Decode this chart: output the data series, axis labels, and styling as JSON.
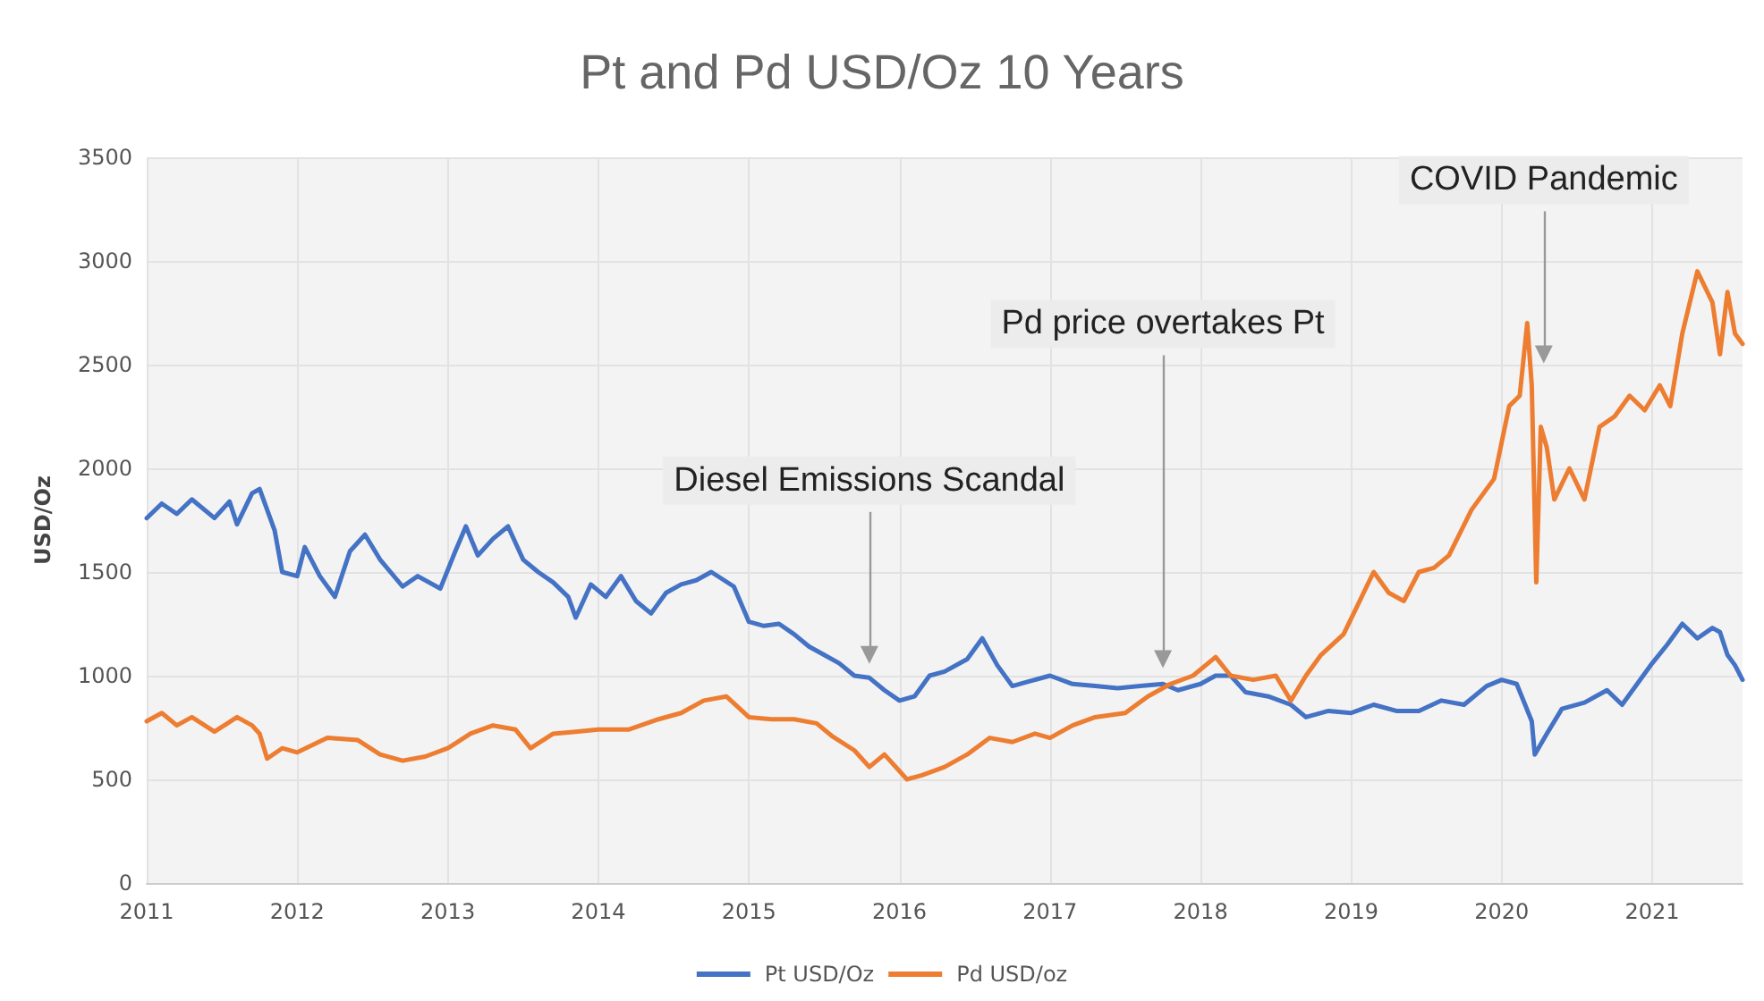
{
  "chart_data": {
    "type": "line",
    "title": "Pt and Pd USD/Oz 10 Years",
    "ylabel": "USD/Oz",
    "xlim": [
      2011,
      2021.6
    ],
    "xticks": [
      2011,
      2012,
      2013,
      2014,
      2015,
      2016,
      2017,
      2018,
      2019,
      2020,
      2021
    ],
    "ylim": [
      0,
      3500
    ],
    "yticks": [
      0,
      500,
      1000,
      1500,
      2000,
      2500,
      3000,
      3500
    ],
    "grid": true,
    "legend": "bottom",
    "marker": "none",
    "line_style": "solid",
    "annotations": [
      {
        "text": "Diesel Emissions Scandal",
        "x": 2015.8,
        "y": 1100
      },
      {
        "text": "Pd price overtakes Pt",
        "x": 2017.75,
        "y": 1080
      },
      {
        "text": "COVID Pandemic",
        "x": 2020.28,
        "y": 2550
      }
    ],
    "series": [
      {
        "name": "Pt USD/Oz",
        "color": "#4472c4",
        "x": [
          2011.0,
          2011.1,
          2011.2,
          2011.3,
          2011.45,
          2011.55,
          2011.6,
          2011.7,
          2011.75,
          2011.85,
          2011.9,
          2012.0,
          2012.05,
          2012.15,
          2012.25,
          2012.35,
          2012.45,
          2012.55,
          2012.7,
          2012.8,
          2012.95,
          2013.05,
          2013.12,
          2013.2,
          2013.3,
          2013.4,
          2013.5,
          2013.6,
          2013.7,
          2013.8,
          2013.85,
          2013.95,
          2014.05,
          2014.15,
          2014.25,
          2014.35,
          2014.45,
          2014.55,
          2014.65,
          2014.75,
          2014.9,
          2015.0,
          2015.1,
          2015.2,
          2015.3,
          2015.4,
          2015.5,
          2015.6,
          2015.7,
          2015.8,
          2015.9,
          2016.0,
          2016.1,
          2016.2,
          2016.3,
          2016.45,
          2016.55,
          2016.65,
          2016.75,
          2016.85,
          2017.0,
          2017.15,
          2017.3,
          2017.45,
          2017.6,
          2017.75,
          2017.85,
          2018.0,
          2018.1,
          2018.2,
          2018.3,
          2018.45,
          2018.6,
          2018.7,
          2018.85,
          2019.0,
          2019.15,
          2019.3,
          2019.45,
          2019.6,
          2019.75,
          2019.9,
          2020.0,
          2020.1,
          2020.2,
          2020.22,
          2020.3,
          2020.4,
          2020.55,
          2020.7,
          2020.8,
          2020.9,
          2021.0,
          2021.1,
          2021.2,
          2021.3,
          2021.4,
          2021.45,
          2021.5,
          2021.55,
          2021.6
        ],
        "values": [
          1760,
          1830,
          1780,
          1850,
          1760,
          1840,
          1730,
          1880,
          1900,
          1700,
          1500,
          1480,
          1620,
          1480,
          1380,
          1600,
          1680,
          1560,
          1430,
          1480,
          1420,
          1600,
          1720,
          1580,
          1660,
          1720,
          1560,
          1500,
          1450,
          1380,
          1280,
          1440,
          1380,
          1480,
          1360,
          1300,
          1400,
          1440,
          1460,
          1500,
          1430,
          1260,
          1240,
          1250,
          1200,
          1140,
          1100,
          1060,
          1000,
          990,
          930,
          880,
          900,
          1000,
          1020,
          1080,
          1180,
          1050,
          950,
          970,
          1000,
          960,
          950,
          940,
          950,
          960,
          930,
          960,
          1000,
          1000,
          920,
          900,
          860,
          800,
          830,
          820,
          860,
          830,
          830,
          880,
          860,
          950,
          980,
          960,
          780,
          620,
          720,
          840,
          870,
          930,
          860,
          960,
          1060,
          1150,
          1250,
          1180,
          1230,
          1210,
          1100,
          1050,
          980
        ]
      },
      {
        "name": "Pd USD/oz",
        "color": "#ed7d31",
        "x": [
          2011.0,
          2011.1,
          2011.2,
          2011.3,
          2011.45,
          2011.6,
          2011.7,
          2011.75,
          2011.8,
          2011.9,
          2012.0,
          2012.2,
          2012.4,
          2012.55,
          2012.7,
          2012.85,
          2013.0,
          2013.15,
          2013.3,
          2013.45,
          2013.55,
          2013.7,
          2013.85,
          2014.0,
          2014.2,
          2014.4,
          2014.55,
          2014.7,
          2014.85,
          2015.0,
          2015.15,
          2015.3,
          2015.45,
          2015.55,
          2015.7,
          2015.8,
          2015.9,
          2016.05,
          2016.15,
          2016.3,
          2016.45,
          2016.6,
          2016.75,
          2016.9,
          2017.0,
          2017.15,
          2017.3,
          2017.5,
          2017.65,
          2017.8,
          2017.95,
          2018.05,
          2018.1,
          2018.2,
          2018.35,
          2018.5,
          2018.6,
          2018.7,
          2018.8,
          2018.95,
          2019.05,
          2019.15,
          2019.25,
          2019.35,
          2019.45,
          2019.55,
          2019.65,
          2019.8,
          2019.95,
          2020.05,
          2020.12,
          2020.17,
          2020.2,
          2020.23,
          2020.26,
          2020.3,
          2020.35,
          2020.45,
          2020.55,
          2020.65,
          2020.75,
          2020.85,
          2020.95,
          2021.05,
          2021.12,
          2021.2,
          2021.3,
          2021.4,
          2021.45,
          2021.5,
          2021.55,
          2021.6
        ],
        "values": [
          780,
          820,
          760,
          800,
          730,
          800,
          760,
          720,
          600,
          650,
          630,
          700,
          690,
          620,
          590,
          610,
          650,
          720,
          760,
          740,
          650,
          720,
          730,
          740,
          740,
          790,
          820,
          880,
          900,
          800,
          790,
          790,
          770,
          710,
          640,
          560,
          620,
          500,
          520,
          560,
          620,
          700,
          680,
          720,
          700,
          760,
          800,
          820,
          900,
          960,
          1000,
          1060,
          1090,
          1000,
          980,
          1000,
          880,
          1000,
          1100,
          1200,
          1350,
          1500,
          1400,
          1360,
          1500,
          1520,
          1580,
          1800,
          1950,
          2300,
          2350,
          2700,
          2400,
          1450,
          2200,
          2100,
          1850,
          2000,
          1850,
          2200,
          2250,
          2350,
          2280,
          2400,
          2300,
          2650,
          2950,
          2800,
          2550,
          2850,
          2650,
          2600
        ]
      }
    ]
  }
}
